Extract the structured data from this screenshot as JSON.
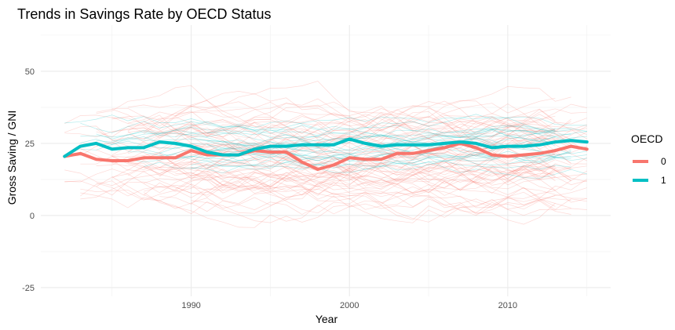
{
  "chart_data": {
    "type": "line",
    "title": "Trends in Savings Rate by OECD Status",
    "xlabel": "Year",
    "ylabel": "Gross Saving / GNI",
    "xlim": [
      1980.5,
      2016.5
    ],
    "ylim": [
      -28,
      66
    ],
    "x_ticks": [
      1990,
      2000,
      2010
    ],
    "y_ticks": [
      -25,
      0,
      25,
      50
    ],
    "grid": true,
    "legend": {
      "title": "OECD",
      "position": "right",
      "entries": [
        {
          "label": "0",
          "color": "#F8766D"
        },
        {
          "label": "1",
          "color": "#00BFC4"
        }
      ]
    },
    "x": [
      1982,
      1983,
      1984,
      1985,
      1986,
      1987,
      1988,
      1989,
      1990,
      1991,
      1992,
      1993,
      1994,
      1995,
      1996,
      1997,
      1998,
      1999,
      2000,
      2001,
      2002,
      2003,
      2004,
      2005,
      2006,
      2007,
      2008,
      2009,
      2010,
      2011,
      2012,
      2013,
      2014,
      2015
    ],
    "series": [
      {
        "name": "0",
        "color": "#F8766D",
        "values": [
          20.5,
          21.5,
          19.5,
          19.0,
          19.0,
          20.0,
          20.0,
          20.0,
          22.5,
          21.0,
          21.0,
          21.0,
          22.5,
          22.0,
          22.0,
          18.5,
          16.0,
          17.5,
          20.0,
          19.5,
          19.5,
          21.5,
          21.5,
          22.5,
          23.5,
          25.0,
          23.5,
          21.0,
          20.5,
          21.0,
          21.5,
          22.5,
          24.0,
          23.0
        ]
      },
      {
        "name": "1",
        "color": "#00BFC4",
        "values": [
          20.5,
          24.0,
          25.0,
          23.0,
          23.5,
          23.5,
          25.5,
          25.0,
          24.0,
          22.0,
          21.0,
          21.0,
          23.0,
          24.0,
          24.0,
          24.5,
          24.5,
          24.5,
          26.5,
          25.0,
          24.0,
          24.5,
          24.5,
          24.5,
          25.0,
          25.5,
          25.0,
          23.5,
          24.0,
          24.0,
          24.5,
          25.5,
          26.0,
          25.5
        ]
      }
    ],
    "background_lines": {
      "description": "Thin translucent per-country trajectories behind the group means",
      "group_0_count": 70,
      "group_1_count": 24
    }
  }
}
